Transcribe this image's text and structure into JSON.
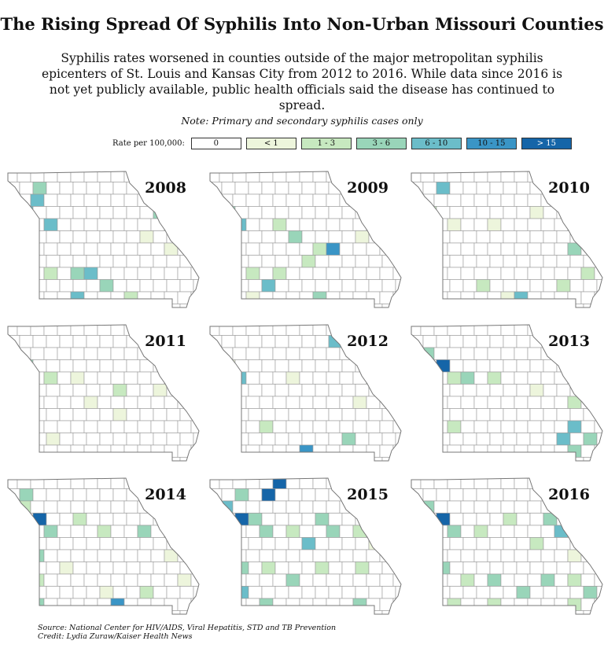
{
  "title": "The Rising Spread Of Syphilis Into Non-Urban Missouri Counties",
  "subtitle": "Syphilis rates worsened in counties outside of the major metropolitan syphilis epicenters of St. Louis and Kansas City from 2012 to 2016. While data since 2016 is not yet publicly available, public health officials said the disease has continued to spread.",
  "note": "Note: Primary and secondary syphilis cases only",
  "legend": {
    "title": "Rate per 100,000:",
    "bins": [
      {
        "label": "0",
        "color": "#ffffff",
        "text": "#111"
      },
      {
        "label": "< 1",
        "color": "#edf5dc",
        "text": "#111"
      },
      {
        "label": "1 - 3",
        "color": "#c7e9c0",
        "text": "#111"
      },
      {
        "label": "3 - 6",
        "color": "#99d5b9",
        "text": "#111"
      },
      {
        "label": "6 - 10",
        "color": "#6bbdc9",
        "text": "#111"
      },
      {
        "label": "10 - 15",
        "color": "#3a95c6",
        "text": "#111"
      },
      {
        "label": "> 15",
        "color": "#1565a8",
        "text": "#ffffff"
      }
    ]
  },
  "maps": [
    {
      "year": "2008"
    },
    {
      "year": "2009"
    },
    {
      "year": "2010"
    },
    {
      "year": "2011"
    },
    {
      "year": "2012"
    },
    {
      "year": "2013"
    },
    {
      "year": "2014"
    },
    {
      "year": "2015"
    },
    {
      "year": "2016"
    }
  ],
  "footer": {
    "source": "Source: National Center for HIV/AIDS, Viral Hepatitis, STD and TB Prevention",
    "credit": "Credit: Lydia Zuraw/Kaiser Health News"
  }
}
